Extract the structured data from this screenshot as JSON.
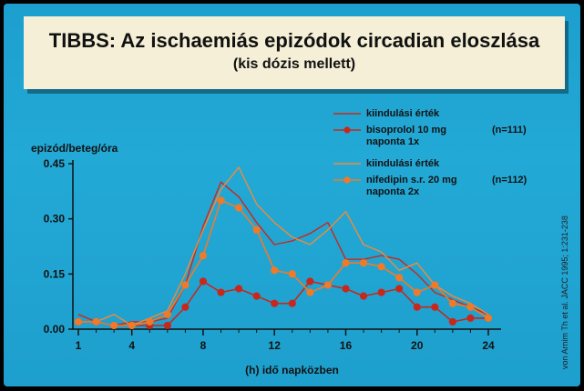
{
  "title": "TIBBS: Az ischaemiás epizódok circadian eloszlása",
  "subtitle": "(kis dózis mellett)",
  "citation": "von Arnim Th et al. JACC 1995; 1:231-238",
  "colors": {
    "bisoprolol": "#c8281c",
    "nifedipin": "#f07a2a",
    "baseline_biso": "#c8281c",
    "baseline_nife": "#f08a3a"
  },
  "legend": [
    {
      "label_lines": [
        "kiindulási érték"
      ],
      "n": "",
      "marker": false,
      "color_key": "baseline_biso"
    },
    {
      "label_lines": [
        "bisoprolol 10 mg",
        "naponta 1x"
      ],
      "n": "(n=111)",
      "marker": true,
      "color_key": "bisoprolol"
    },
    {
      "label_lines": [
        "kiindulási érték"
      ],
      "n": "",
      "marker": false,
      "color_key": "baseline_nife"
    },
    {
      "label_lines": [
        "nifedipin s.r. 20 mg",
        "naponta 2x"
      ],
      "n": "(n=112)",
      "marker": true,
      "color_key": "nifedipin"
    }
  ],
  "chart_data": {
    "type": "line",
    "ylabel": "epizód/beteg/óra",
    "xlabel": "(h) idő napközben",
    "xlim": [
      1,
      24
    ],
    "ylim": [
      0,
      0.45
    ],
    "xticks": [
      1,
      4,
      8,
      12,
      16,
      20,
      24
    ],
    "yticks": [
      0.0,
      0.15,
      0.3,
      0.45
    ],
    "ytick_labels": [
      "0.00",
      "0.15",
      "0.30",
      "0.45"
    ],
    "x": [
      1,
      2,
      3,
      4,
      5,
      6,
      7,
      8,
      9,
      10,
      11,
      12,
      13,
      14,
      15,
      16,
      17,
      18,
      19,
      20,
      21,
      22,
      23,
      24
    ],
    "series": [
      {
        "name": "kiindulási érték",
        "color_key": "baseline_biso",
        "marker": false,
        "values": [
          0.04,
          0.02,
          0.01,
          0.02,
          0.02,
          0.03,
          0.12,
          0.28,
          0.4,
          0.36,
          0.29,
          0.23,
          0.24,
          0.26,
          0.29,
          0.19,
          0.19,
          0.2,
          0.19,
          0.15,
          0.1,
          0.08,
          0.06,
          0.04
        ]
      },
      {
        "name": "bisoprolol 10 mg naponta 1x",
        "color_key": "bisoprolol",
        "marker": true,
        "values": [
          0.02,
          0.02,
          0.01,
          0.01,
          0.01,
          0.01,
          0.06,
          0.13,
          0.1,
          0.11,
          0.09,
          0.07,
          0.07,
          0.13,
          0.12,
          0.11,
          0.09,
          0.1,
          0.11,
          0.06,
          0.06,
          0.02,
          0.03,
          0.03
        ]
      },
      {
        "name": "kiindulási érték",
        "color_key": "baseline_nife",
        "marker": false,
        "values": [
          0.02,
          0.02,
          0.04,
          0.01,
          0.03,
          0.05,
          0.15,
          0.27,
          0.38,
          0.44,
          0.34,
          0.29,
          0.25,
          0.23,
          0.27,
          0.32,
          0.23,
          0.21,
          0.16,
          0.18,
          0.12,
          0.09,
          0.07,
          0.04
        ]
      },
      {
        "name": "nifedipin s.r. 20 mg naponta 2x",
        "color_key": "nifedipin",
        "marker": true,
        "values": [
          0.02,
          0.02,
          0.01,
          0.01,
          0.02,
          0.04,
          0.12,
          0.2,
          0.35,
          0.33,
          0.27,
          0.16,
          0.15,
          0.1,
          0.12,
          0.18,
          0.18,
          0.17,
          0.14,
          0.1,
          0.12,
          0.07,
          0.06,
          0.03
        ]
      }
    ]
  }
}
